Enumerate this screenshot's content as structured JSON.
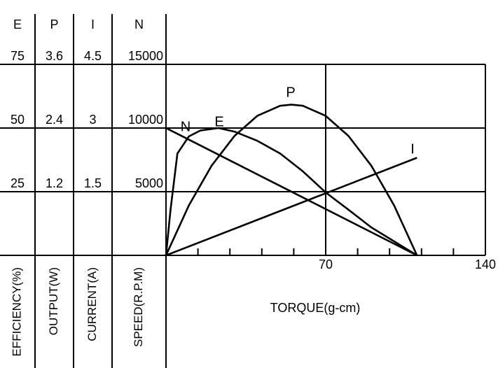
{
  "chart_data": {
    "type": "line",
    "xlabel": "TORQUE(g-cm)",
    "xlim": [
      0,
      140
    ],
    "xticks": [
      70,
      140
    ],
    "xminor_ticks": [
      14,
      28,
      42,
      56,
      84,
      98,
      112,
      126
    ],
    "grid": true,
    "color": "#000000",
    "yaxes": [
      {
        "symbol": "E",
        "label": "EFFICIENCY(%)",
        "ylim": [
          0,
          75
        ],
        "yticks": [
          25,
          50,
          75
        ]
      },
      {
        "symbol": "P",
        "label": "OUTPUT(W)",
        "ylim": [
          0,
          3.6
        ],
        "yticks": [
          1.2,
          2.4,
          3.6
        ]
      },
      {
        "symbol": "I",
        "label": "CURRENT(A)",
        "ylim": [
          0,
          4.5
        ],
        "yticks": [
          1.5,
          3.0,
          4.5
        ]
      },
      {
        "symbol": "N",
        "label": "SPEED(R.P.M)",
        "ylim": [
          0,
          15000
        ],
        "yticks": [
          5000,
          10000,
          15000
        ]
      }
    ],
    "series": [
      {
        "name": "N",
        "axis": 3,
        "x": [
          0,
          110
        ],
        "values": [
          10000,
          0
        ]
      },
      {
        "name": "E",
        "axis": 0,
        "x": [
          0,
          2,
          5,
          10,
          15,
          23,
          30,
          40,
          50,
          60,
          70,
          80,
          90,
          100,
          110
        ],
        "values": [
          0,
          18,
          40,
          46.7,
          49,
          50,
          48.6,
          45,
          40,
          33,
          24.7,
          17.9,
          11,
          5.5,
          0
        ]
      },
      {
        "name": "P",
        "axis": 1,
        "x": [
          0,
          10,
          20,
          30,
          40,
          50,
          55,
          60,
          70,
          80,
          90,
          100,
          110
        ],
        "values": [
          0,
          0.94,
          1.69,
          2.25,
          2.63,
          2.82,
          2.84,
          2.82,
          2.63,
          2.25,
          1.69,
          0.94,
          0
        ]
      },
      {
        "name": "I",
        "axis": 2,
        "x": [
          0,
          110
        ],
        "values": [
          0,
          2.3
        ]
      }
    ]
  }
}
